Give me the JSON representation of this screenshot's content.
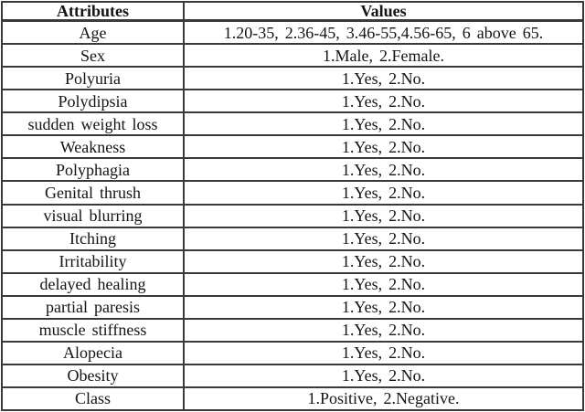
{
  "colors": {
    "background": "#ffffff",
    "border": "#3a3a3a",
    "text": "#141414"
  },
  "table": {
    "columns": [
      "Attributes",
      "Values"
    ],
    "rows": [
      {
        "attribute": "Age",
        "value": "1.20-35, 2.36-45, 3.46-55,4.56-65, 6 above 65."
      },
      {
        "attribute": "Sex",
        "value": "1.Male, 2.Female."
      },
      {
        "attribute": "Polyuria",
        "value": "1.Yes, 2.No."
      },
      {
        "attribute": "Polydipsia",
        "value": "1.Yes, 2.No."
      },
      {
        "attribute": "sudden weight loss",
        "value": "1.Yes, 2.No."
      },
      {
        "attribute": "Weakness",
        "value": "1.Yes, 2.No."
      },
      {
        "attribute": "Polyphagia",
        "value": "1.Yes, 2.No."
      },
      {
        "attribute": "Genital thrush",
        "value": "1.Yes, 2.No."
      },
      {
        "attribute": "visual blurring",
        "value": "1.Yes, 2.No."
      },
      {
        "attribute": "Itching",
        "value": "1.Yes, 2.No."
      },
      {
        "attribute": "Irritability",
        "value": "1.Yes, 2.No."
      },
      {
        "attribute": "delayed healing",
        "value": "1.Yes, 2.No."
      },
      {
        "attribute": "partial paresis",
        "value": "1.Yes, 2.No."
      },
      {
        "attribute": "muscle stiffness",
        "value": "1.Yes, 2.No."
      },
      {
        "attribute": "Alopecia",
        "value": "1.Yes, 2.No."
      },
      {
        "attribute": "Obesity",
        "value": "1.Yes, 2.No."
      },
      {
        "attribute": "Class",
        "value": "1.Positive, 2.Negative."
      }
    ]
  }
}
